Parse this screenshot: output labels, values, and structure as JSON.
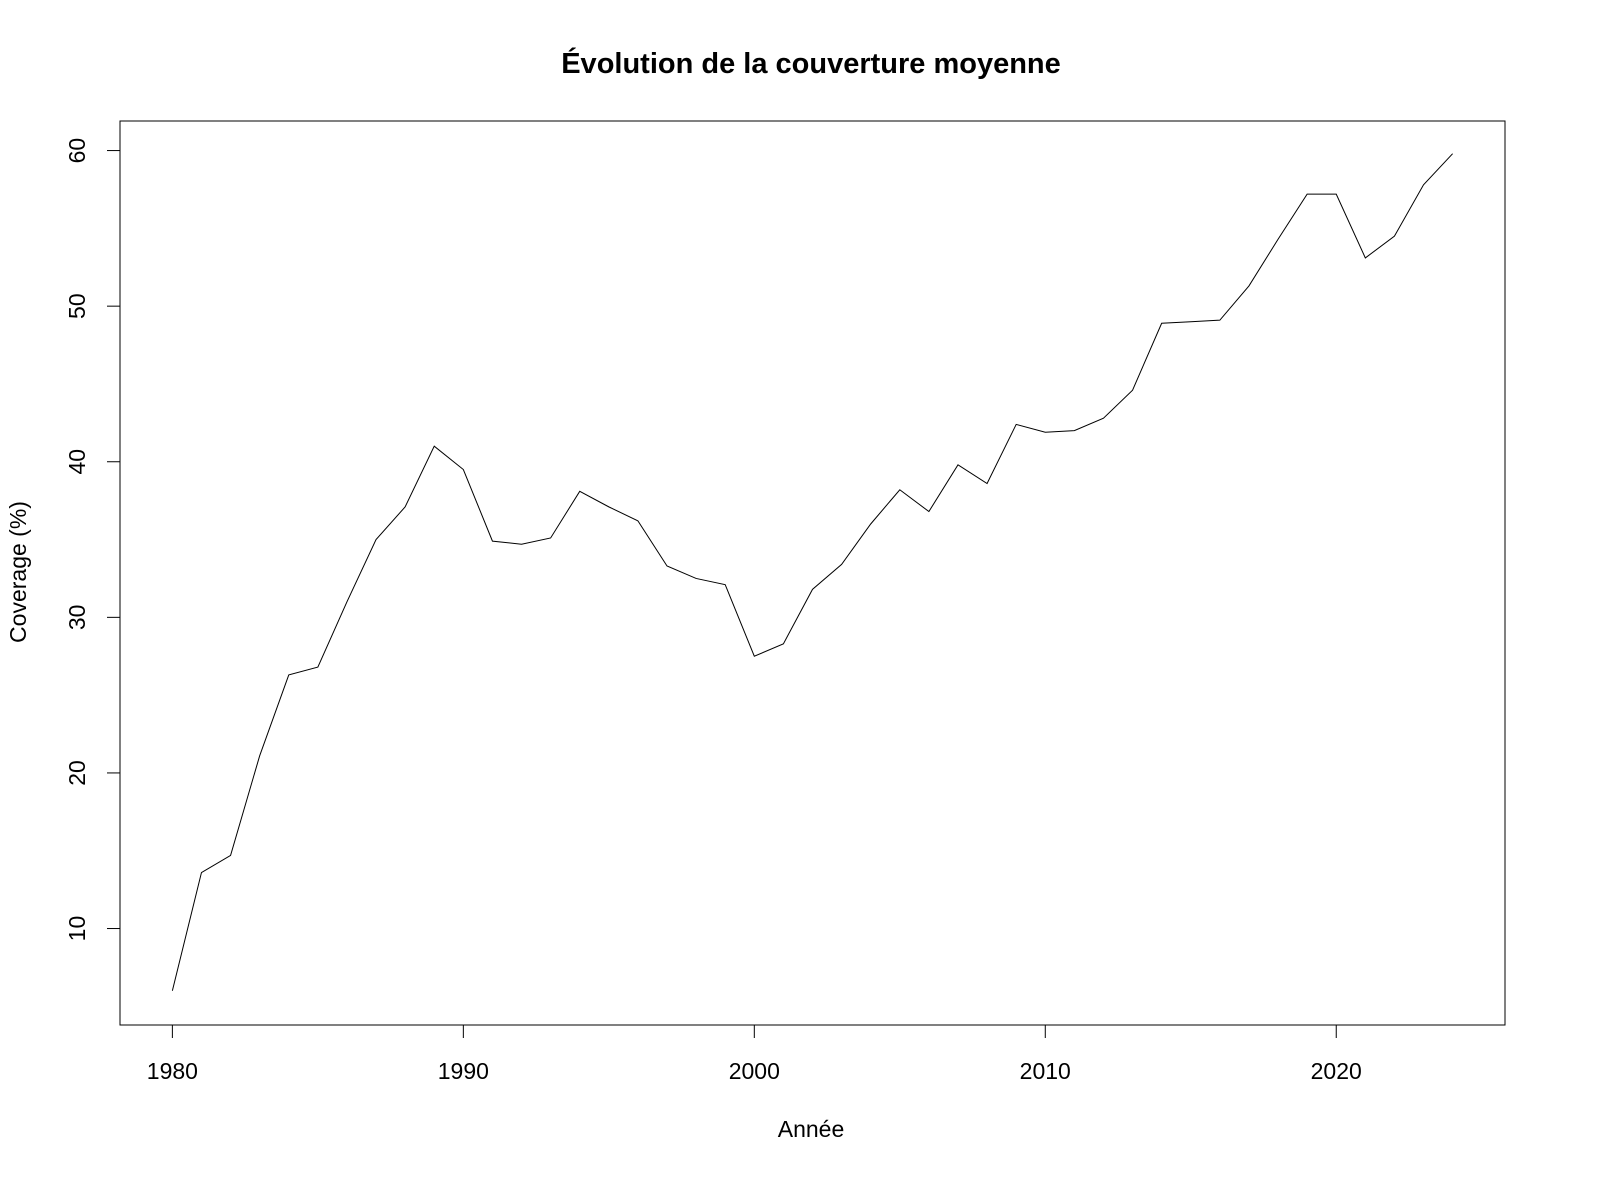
{
  "chart_data": {
    "type": "line",
    "title": "Évolution de la couverture moyenne",
    "xlabel": "Année",
    "ylabel": "Coverage (%)",
    "xlim": [
      1978.2,
      2025.8
    ],
    "ylim": [
      3.8,
      61.9
    ],
    "x_ticks": [
      1980,
      1990,
      2000,
      2010,
      2020
    ],
    "x_tick_labels": [
      "1980",
      "1990",
      "2000",
      "2010",
      "2020"
    ],
    "y_ticks": [
      10,
      20,
      30,
      40,
      50,
      60
    ],
    "y_tick_labels": [
      "10",
      "20",
      "30",
      "40",
      "50",
      "60"
    ],
    "grid": false,
    "line_color": "#000000",
    "series": [
      {
        "x": [
          1980,
          1981,
          1982,
          1983,
          1984,
          1985,
          1986,
          1987,
          1988,
          1989,
          1990,
          1991,
          1992,
          1993,
          1994,
          1995,
          1996,
          1997,
          1998,
          1999,
          2000,
          2001,
          2002,
          2003,
          2004,
          2005,
          2006,
          2007,
          2008,
          2009,
          2010,
          2011,
          2012,
          2013,
          2014,
          2015,
          2016,
          2017,
          2018,
          2019,
          2020,
          2021,
          2022,
          2023,
          2024
        ],
        "y": [
          6.0,
          13.6,
          14.7,
          21.1,
          26.3,
          26.8,
          31.0,
          35.0,
          37.1,
          41.0,
          39.5,
          34.9,
          34.7,
          35.1,
          38.1,
          37.1,
          36.2,
          33.3,
          32.5,
          32.1,
          27.5,
          28.3,
          31.8,
          33.4,
          36.0,
          38.2,
          36.8,
          39.8,
          38.6,
          42.4,
          41.9,
          42.0,
          42.8,
          44.6,
          48.9,
          49.0,
          49.1,
          51.3,
          54.3,
          57.2,
          57.2,
          53.1,
          54.5,
          57.8,
          59.8
        ]
      }
    ]
  }
}
